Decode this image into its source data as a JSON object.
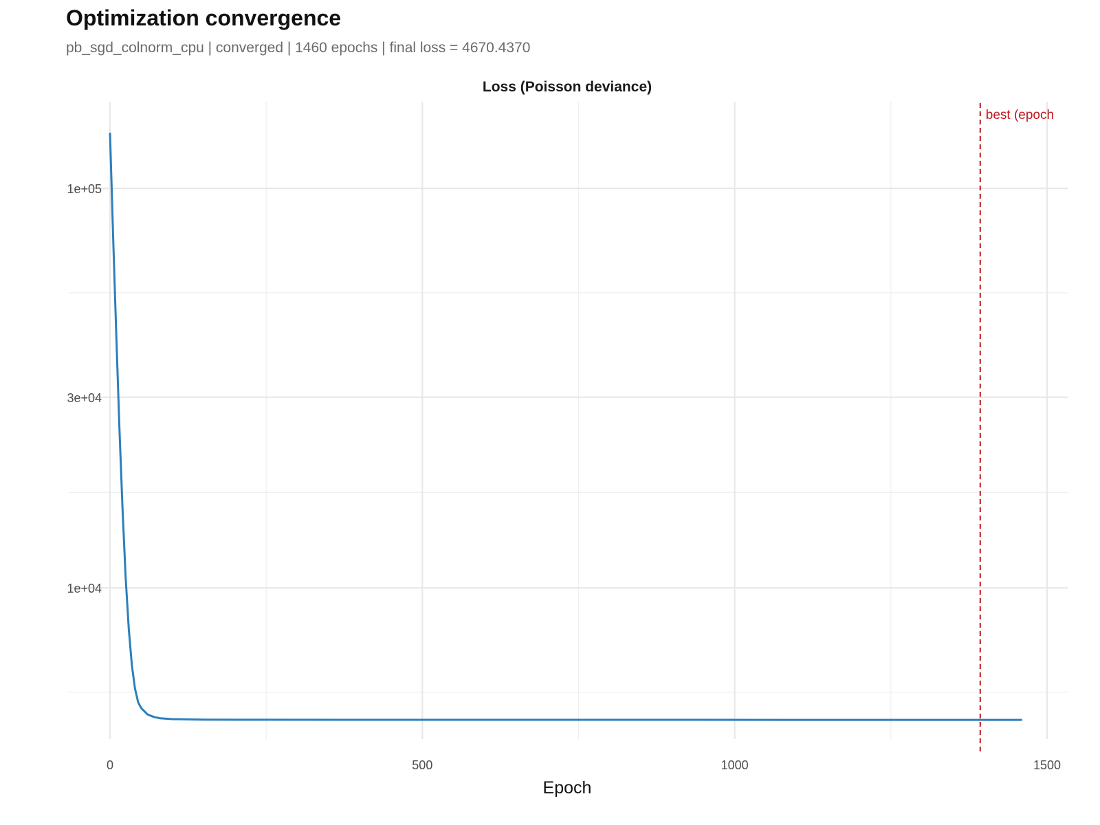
{
  "title": "Optimization convergence",
  "subtitle": "pb_sgd_colnorm_cpu | converged | 1460 epochs | final loss = 4670.4370",
  "chart_data": {
    "type": "line",
    "panel_title": "Loss (Poisson deviance)",
    "xlabel": "Epoch",
    "ylabel": "",
    "y_scale": "log10",
    "xlim": [
      -70,
      1530
    ],
    "ylim": [
      3900,
      170000
    ],
    "x_ticks": [
      0,
      500,
      1000,
      1500
    ],
    "x_tick_labels": [
      "0",
      "500",
      "1000",
      "1500"
    ],
    "x_minor_ticks": [
      250,
      750,
      1250
    ],
    "y_ticks": [
      10000,
      30000,
      100000
    ],
    "y_tick_labels": [
      "1e+04",
      "3e+04",
      "1e+05"
    ],
    "y_minor_ticks": [
      5477,
      17321,
      54772
    ],
    "grid": true,
    "series": [
      {
        "name": "loss",
        "color": "#2b7fbd",
        "x": [
          0,
          5,
          10,
          15,
          20,
          25,
          30,
          35,
          40,
          45,
          50,
          60,
          70,
          80,
          100,
          150,
          200,
          400,
          800,
          1200,
          1393,
          1460
        ],
        "y": [
          137800,
          76270,
          43170,
          25390,
          15810,
          10660,
          7894,
          6405,
          5603,
          5172,
          5000,
          4820,
          4750,
          4715,
          4690,
          4678,
          4675,
          4673,
          4671.5,
          4670.8,
          4670.44,
          4670.437
        ]
      }
    ],
    "annotations": [
      {
        "type": "vline",
        "x": 1393,
        "color": "#c0171f",
        "style": "dashed",
        "label": "best (epoch"
      }
    ]
  }
}
